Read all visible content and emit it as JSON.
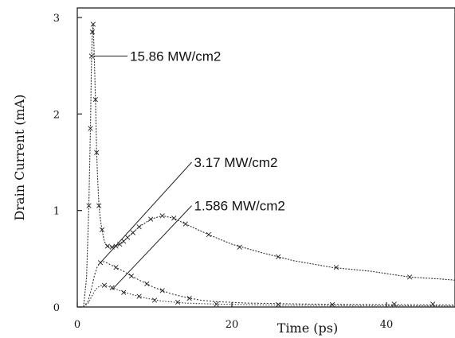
{
  "chart_data": {
    "type": "line",
    "xlabel": "Time (ps)",
    "ylabel": "Drain  Current (mA)",
    "xlim": [
      0,
      50
    ],
    "ylim": [
      0,
      3
    ],
    "x_ticks": [
      "0",
      "20",
      "40"
    ],
    "y_ticks": [
      "0",
      "1",
      "2",
      "3"
    ],
    "grid": false,
    "series": [
      {
        "name": "15.86 MW/cm2",
        "points": [
          [
            0.8,
            0.0
          ],
          [
            1.2,
            0.3
          ],
          [
            1.5,
            1.05
          ],
          [
            1.7,
            1.85
          ],
          [
            1.85,
            2.6
          ],
          [
            1.95,
            2.85
          ],
          [
            2.05,
            2.93
          ],
          [
            2.2,
            2.6
          ],
          [
            2.35,
            2.15
          ],
          [
            2.5,
            1.6
          ],
          [
            2.65,
            1.3
          ],
          [
            2.8,
            1.05
          ],
          [
            3.0,
            0.9
          ],
          [
            3.2,
            0.8
          ],
          [
            3.5,
            0.68
          ],
          [
            3.9,
            0.63
          ],
          [
            4.5,
            0.62
          ],
          [
            5.5,
            0.65
          ],
          [
            6.5,
            0.72
          ],
          [
            8.0,
            0.83
          ],
          [
            9.5,
            0.91
          ],
          [
            11.0,
            0.945
          ],
          [
            12.5,
            0.92
          ],
          [
            14.0,
            0.86
          ],
          [
            17.0,
            0.75
          ],
          [
            20.0,
            0.65
          ],
          [
            24.0,
            0.56
          ],
          [
            28.0,
            0.48
          ],
          [
            33.0,
            0.41
          ],
          [
            38.0,
            0.37
          ],
          [
            43.0,
            0.31
          ],
          [
            47.0,
            0.29
          ],
          [
            50.0,
            0.27
          ]
        ],
        "markers": [
          [
            1.5,
            1.05
          ],
          [
            1.7,
            1.85
          ],
          [
            1.85,
            2.6
          ],
          [
            1.95,
            2.85
          ],
          [
            2.05,
            2.93
          ],
          [
            2.35,
            2.15
          ],
          [
            2.5,
            1.6
          ],
          [
            2.8,
            1.05
          ],
          [
            3.2,
            0.8
          ],
          [
            3.9,
            0.63
          ],
          [
            4.5,
            0.62
          ],
          [
            5.0,
            0.63
          ],
          [
            5.5,
            0.65
          ],
          [
            6.0,
            0.68
          ],
          [
            6.5,
            0.72
          ],
          [
            7.2,
            0.77
          ],
          [
            8.0,
            0.83
          ],
          [
            9.5,
            0.91
          ],
          [
            11.0,
            0.945
          ],
          [
            12.5,
            0.92
          ],
          [
            14.0,
            0.86
          ],
          [
            17.0,
            0.75
          ],
          [
            21.0,
            0.62
          ],
          [
            26.0,
            0.52
          ],
          [
            33.5,
            0.41
          ],
          [
            43.0,
            0.31
          ]
        ]
      },
      {
        "name": "3.17 MW/cm2",
        "points": [
          [
            0.8,
            0.0
          ],
          [
            1.4,
            0.06
          ],
          [
            1.8,
            0.18
          ],
          [
            2.2,
            0.32
          ],
          [
            2.6,
            0.42
          ],
          [
            3.0,
            0.46
          ],
          [
            3.5,
            0.47
          ],
          [
            4.0,
            0.45
          ],
          [
            5.0,
            0.41
          ],
          [
            6.0,
            0.37
          ],
          [
            7.0,
            0.32
          ],
          [
            8.5,
            0.26
          ],
          [
            10.0,
            0.2
          ],
          [
            12.0,
            0.14
          ],
          [
            14.0,
            0.1
          ],
          [
            16.0,
            0.07
          ],
          [
            18.0,
            0.055
          ],
          [
            22.0,
            0.04
          ],
          [
            30.0,
            0.03
          ],
          [
            40.0,
            0.025
          ],
          [
            50.0,
            0.02
          ]
        ],
        "markers": [
          [
            3.0,
            0.46
          ],
          [
            5.0,
            0.41
          ],
          [
            7.0,
            0.32
          ],
          [
            9.0,
            0.24
          ],
          [
            11.0,
            0.17
          ],
          [
            14.5,
            0.09
          ]
        ]
      },
      {
        "name": "1.586 MW/cm2",
        "points": [
          [
            0.8,
            0.0
          ],
          [
            1.4,
            0.04
          ],
          [
            1.8,
            0.1
          ],
          [
            2.2,
            0.16
          ],
          [
            2.6,
            0.2
          ],
          [
            3.0,
            0.22
          ],
          [
            3.5,
            0.225
          ],
          [
            4.5,
            0.2
          ],
          [
            5.5,
            0.17
          ],
          [
            7.0,
            0.13
          ],
          [
            9.0,
            0.09
          ],
          [
            11.0,
            0.06
          ],
          [
            14.0,
            0.04
          ],
          [
            18.0,
            0.03
          ],
          [
            25.0,
            0.02
          ],
          [
            35.0,
            0.015
          ],
          [
            50.0,
            0.01
          ]
        ],
        "markers": [
          [
            3.5,
            0.225
          ],
          [
            4.5,
            0.2
          ],
          [
            6.0,
            0.15
          ],
          [
            8.0,
            0.11
          ],
          [
            10.0,
            0.07
          ],
          [
            13.0,
            0.05
          ],
          [
            18.0,
            0.03
          ],
          [
            26.0,
            0.025
          ],
          [
            33.0,
            0.025
          ],
          [
            41.0,
            0.03
          ],
          [
            46.0,
            0.03
          ]
        ]
      }
    ],
    "annotations": [
      {
        "text": "15.86 MW/cm2",
        "target": [
          2.05,
          2.6
        ],
        "anchor": [
          6.5,
          2.6
        ]
      },
      {
        "text": "3.17 MW/cm2",
        "target": [
          3.0,
          0.46
        ],
        "anchor": [
          14.8,
          1.5
        ]
      },
      {
        "text": "1.586 MW/cm2",
        "target": [
          4.5,
          0.18
        ],
        "anchor": [
          14.8,
          1.05
        ]
      }
    ]
  }
}
